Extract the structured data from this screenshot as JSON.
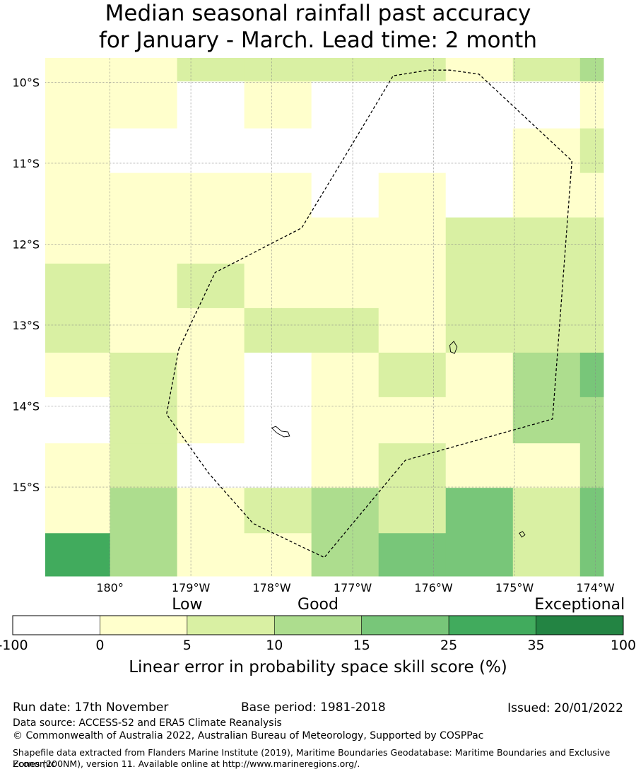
{
  "title": {
    "line1": "Median seasonal rainfall past accuracy",
    "line2": "for January - March. Lead time: 2 month"
  },
  "map": {
    "lat_range": [
      -16.1,
      -9.7
    ],
    "lon_range": [
      179.2,
      186.1
    ],
    "lat_labels": [
      {
        "lat": -10,
        "text": "10°S"
      },
      {
        "lat": -11,
        "text": "11°S"
      },
      {
        "lat": -12,
        "text": "12°S"
      },
      {
        "lat": -13,
        "text": "13°S"
      },
      {
        "lat": -14,
        "text": "14°S"
      },
      {
        "lat": -15,
        "text": "15°S"
      }
    ],
    "lon_labels": [
      {
        "lon": 180,
        "text": "180°"
      },
      {
        "lon": 181,
        "text": "179°W"
      },
      {
        "lon": 182,
        "text": "178°W"
      },
      {
        "lon": 183,
        "text": "177°W"
      },
      {
        "lon": 184,
        "text": "176°W"
      },
      {
        "lon": 185,
        "text": "175°W"
      },
      {
        "lon": 186,
        "text": "174°W"
      }
    ],
    "grid_lons": [
      179.2,
      180.0,
      180.83,
      181.66,
      182.49,
      183.32,
      184.15,
      184.98,
      185.81,
      186.1
    ],
    "grid_lats": [
      -9.7,
      -9.99,
      -10.57,
      -11.12,
      -11.67,
      -12.24,
      -12.79,
      -13.34,
      -13.89,
      -14.46,
      -15.01,
      -15.57,
      -16.1
    ],
    "skill_classes": [
      [
        1,
        1,
        2,
        2,
        2,
        2,
        1,
        2,
        3
      ],
      [
        1,
        1,
        0,
        1,
        0,
        0,
        0,
        0,
        1
      ],
      [
        1,
        0,
        0,
        0,
        0,
        0,
        0,
        1,
        2
      ],
      [
        1,
        1,
        1,
        1,
        0,
        1,
        0,
        1,
        1
      ],
      [
        1,
        1,
        1,
        1,
        1,
        1,
        2,
        2,
        2
      ],
      [
        2,
        1,
        2,
        1,
        1,
        1,
        2,
        2,
        2
      ],
      [
        2,
        1,
        1,
        2,
        2,
        1,
        2,
        2,
        2
      ],
      [
        1,
        2,
        1,
        0,
        1,
        2,
        1,
        3,
        4
      ],
      [
        0,
        2,
        1,
        0,
        1,
        1,
        1,
        3,
        3
      ],
      [
        1,
        2,
        0,
        0,
        1,
        2,
        1,
        1,
        3
      ],
      [
        1,
        3,
        1,
        2,
        3,
        2,
        4,
        2,
        4
      ],
      [
        5,
        3,
        1,
        1,
        3,
        4,
        4,
        2,
        4
      ]
    ],
    "boundary": [
      [
        180.85,
        -13.3
      ],
      [
        181.3,
        -12.35
      ],
      [
        182.37,
        -11.8
      ],
      [
        182.95,
        -10.84
      ],
      [
        183.5,
        -9.92
      ],
      [
        183.94,
        -9.85
      ],
      [
        184.2,
        -9.85
      ],
      [
        184.56,
        -9.9
      ],
      [
        185.71,
        -10.97
      ],
      [
        185.47,
        -14.16
      ],
      [
        183.65,
        -14.67
      ],
      [
        182.65,
        -15.87
      ],
      [
        181.77,
        -15.45
      ],
      [
        181.22,
        -14.83
      ],
      [
        180.7,
        -14.1
      ],
      [
        180.85,
        -13.3
      ]
    ],
    "islands": [
      [
        [
          184.2,
          -13.25
        ],
        [
          184.25,
          -13.2
        ],
        [
          184.29,
          -13.27
        ],
        [
          184.26,
          -13.35
        ],
        [
          184.21,
          -13.33
        ],
        [
          184.2,
          -13.25
        ]
      ],
      [
        [
          182.0,
          -14.27
        ],
        [
          182.05,
          -14.25
        ],
        [
          182.12,
          -14.31
        ],
        [
          182.2,
          -14.32
        ],
        [
          182.22,
          -14.37
        ],
        [
          182.15,
          -14.38
        ],
        [
          182.06,
          -14.33
        ],
        [
          182.0,
          -14.27
        ]
      ],
      [
        [
          185.06,
          -15.57
        ],
        [
          185.1,
          -15.55
        ],
        [
          185.13,
          -15.59
        ],
        [
          185.09,
          -15.62
        ],
        [
          185.06,
          -15.57
        ]
      ]
    ]
  },
  "colorbar": {
    "categories": [
      {
        "text": "Low",
        "pos": 2
      },
      {
        "text": "Good",
        "pos": 3.5
      },
      {
        "text": "Exceptional",
        "pos": 6.5
      }
    ],
    "bins": [
      {
        "from": -100,
        "to": 0,
        "color": "#ffffff"
      },
      {
        "from": 0,
        "to": 5,
        "color": "#ffffcc"
      },
      {
        "from": 5,
        "to": 10,
        "color": "#d9f0a3"
      },
      {
        "from": 10,
        "to": 15,
        "color": "#addd8e"
      },
      {
        "from": 15,
        "to": 25,
        "color": "#78c679"
      },
      {
        "from": 25,
        "to": 35,
        "color": "#41ab5d"
      },
      {
        "from": 35,
        "to": 100,
        "color": "#238443"
      }
    ],
    "ticks": [
      "-100",
      "0",
      "5",
      "10",
      "15",
      "25",
      "35",
      "100"
    ],
    "caption": "Linear error in probability space skill score (%)"
  },
  "footer": {
    "run_date": "Run date: 17th November",
    "base_period": "Base period: 1981-2018",
    "issued": "Issued: 20/01/2022",
    "data_source": "Data source: ACCESS-S2 and ERA5 Climate Reanalysis",
    "copyright": "© Commonwealth of Australia 2022, Australian Bureau of Meteorology, Supported by COSPPac",
    "shapefile_line1": "Shapefile data extracted from Flanders Marine Institute (2019), Maritime Boundaries Geodatabase: Maritime Boundaries and Exclusive Economic",
    "shapefile_line2": "Zones (200NM), version 11. Available online at http://www.marineregions.org/."
  }
}
